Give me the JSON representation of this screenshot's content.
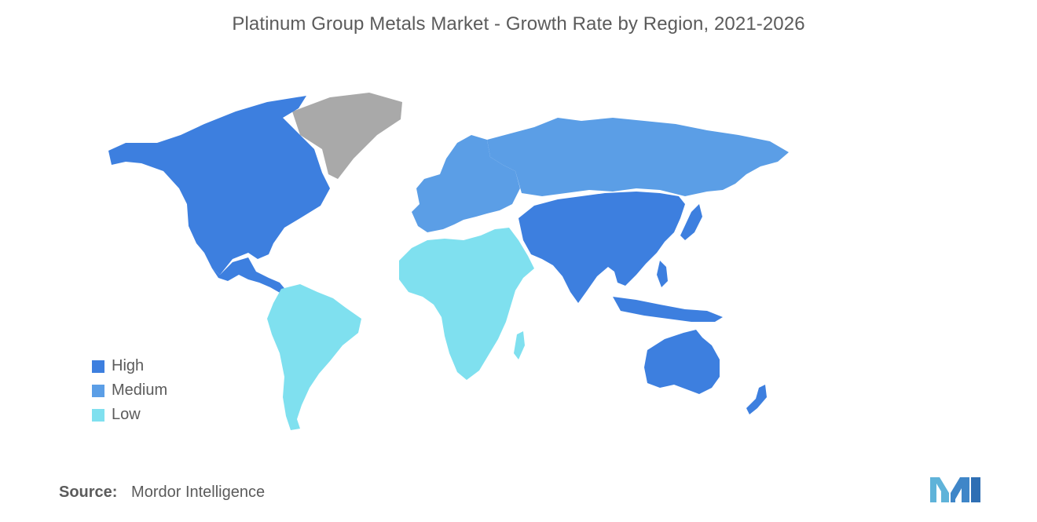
{
  "title": "Platinum Group Metals Market - Growth Rate by Region, 2021-2026",
  "colors": {
    "high": "#3d7fdf",
    "medium": "#5b9ee6",
    "low": "#7fe0ef",
    "no_data": "#a9a9a9"
  },
  "legend": {
    "items": [
      {
        "label": "High",
        "color": "#3d7fdf"
      },
      {
        "label": "Medium",
        "color": "#5b9ee6"
      },
      {
        "label": "Low",
        "color": "#7fe0ef"
      }
    ]
  },
  "regions": {
    "north_america": "High",
    "south_america": "Low",
    "europe": "Medium",
    "russia": "Medium",
    "middle_east_africa": "Low",
    "asia_pacific": "High",
    "australia_nz": "High",
    "greenland": "No data"
  },
  "source": {
    "label": "Source:",
    "value": "Mordor Intelligence"
  },
  "logo": {
    "icon": "mordor-intelligence-logo-icon"
  }
}
